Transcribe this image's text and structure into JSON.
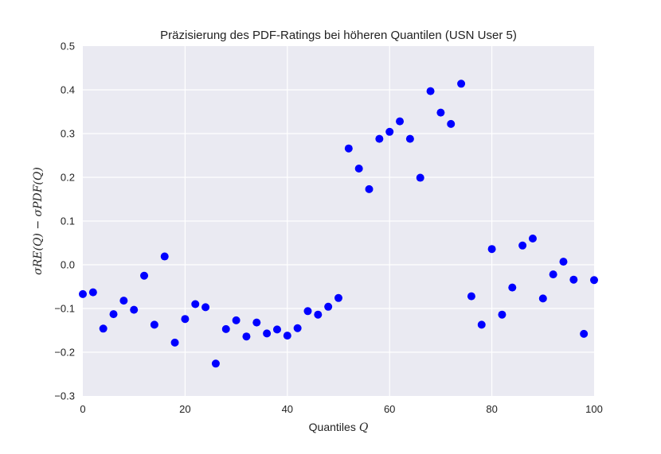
{
  "chart_data": {
    "type": "scatter",
    "title": "Präzisierung des PDF-Ratings bei höheren Quantilen (USN User 5)",
    "xlabel": "Quantiles",
    "xlabel_symbol": "Q",
    "ylabel": "σRE(Q) − σPDF(Q)",
    "xlim": [
      0,
      100
    ],
    "ylim": [
      -0.3,
      0.5
    ],
    "x_ticks": [
      0,
      20,
      40,
      60,
      80,
      100
    ],
    "y_ticks": [
      -0.3,
      -0.2,
      -0.1,
      0.0,
      0.1,
      0.2,
      0.3,
      0.4,
      0.5
    ],
    "x_tick_labels": [
      "0",
      "20",
      "40",
      "60",
      "80",
      "100"
    ],
    "y_tick_labels": [
      "−0.3",
      "−0.2",
      "−0.1",
      "0.0",
      "0.1",
      "0.2",
      "0.3",
      "0.4",
      "0.5"
    ],
    "grid": true,
    "background_color": "#EAEAF2",
    "marker_color": "#0000FF",
    "series": [
      {
        "x": [
          0,
          2,
          4,
          6,
          8,
          10,
          12,
          14,
          16,
          18,
          20,
          22,
          24,
          26,
          28,
          30,
          32,
          34,
          36,
          38,
          40,
          42,
          44,
          46,
          48,
          50,
          52,
          54,
          56,
          58,
          60,
          62,
          64,
          66,
          68,
          70,
          72,
          74,
          76,
          78,
          80,
          82,
          84,
          86,
          88,
          90,
          92,
          94,
          96,
          98,
          100
        ],
        "y": [
          -0.067,
          -0.063,
          -0.146,
          -0.113,
          -0.082,
          -0.103,
          -0.025,
          -0.137,
          0.019,
          -0.178,
          -0.124,
          -0.09,
          -0.097,
          -0.226,
          -0.147,
          -0.127,
          -0.164,
          -0.132,
          -0.157,
          -0.148,
          -0.162,
          -0.145,
          -0.106,
          -0.114,
          -0.096,
          -0.076,
          0.266,
          0.22,
          0.173,
          0.288,
          0.304,
          0.328,
          0.288,
          0.199,
          0.397,
          0.348,
          0.322,
          0.414,
          -0.072,
          -0.137,
          0.036,
          -0.114,
          -0.052,
          0.044,
          0.06,
          -0.077,
          -0.022,
          0.007,
          -0.034,
          -0.158,
          -0.035
        ]
      }
    ]
  }
}
